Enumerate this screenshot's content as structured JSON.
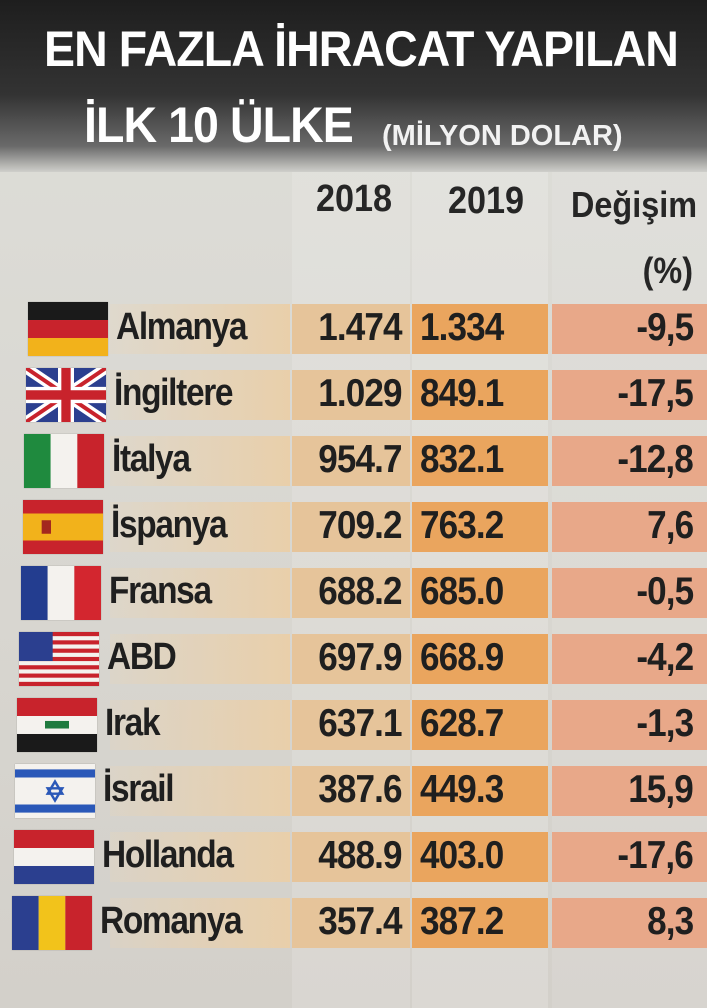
{
  "title": {
    "line1": "EN FAZLA İHRACAT YAPILAN",
    "line2": "İLK 10 ÜLKE",
    "unit": "(MİLYON DOLAR)"
  },
  "columns": {
    "year1": "2018",
    "year2": "2019",
    "change": "Değişim",
    "change_unit": "(%)"
  },
  "chart_data": {
    "type": "table",
    "title": "EN FAZLA İHRACAT YAPILAN İLK 10 ÜLKE",
    "subtitle": "(MİLYON DOLAR)",
    "columns": [
      "2018",
      "2019",
      "Değişim (%)"
    ],
    "rows": [
      {
        "country": "Almanya",
        "flag": "germany-flag",
        "v2018": "1.474",
        "v2019": "1.334",
        "change": "-9,5"
      },
      {
        "country": "İngiltere",
        "flag": "uk-flag",
        "v2018": "1.029",
        "v2019": "849.1",
        "change": "-17,5"
      },
      {
        "country": "İtalya",
        "flag": "italy-flag",
        "v2018": "954.7",
        "v2019": "832.1",
        "change": "-12,8"
      },
      {
        "country": "İspanya",
        "flag": "spain-flag",
        "v2018": "709.2",
        "v2019": "763.2",
        "change": "7,6"
      },
      {
        "country": "Fransa",
        "flag": "france-flag",
        "v2018": "688.2",
        "v2019": "685.0",
        "change": "-0,5"
      },
      {
        "country": "ABD",
        "flag": "usa-flag",
        "v2018": "697.9",
        "v2019": "668.9",
        "change": "-4,2"
      },
      {
        "country": "Irak",
        "flag": "iraq-flag",
        "v2018": "637.1",
        "v2019": "628.7",
        "change": "-1,3"
      },
      {
        "country": "İsrail",
        "flag": "israel-flag",
        "v2018": "387.6",
        "v2019": "449.3",
        "change": "15,9"
      },
      {
        "country": "Hollanda",
        "flag": "netherlands-flag",
        "v2018": "488.9",
        "v2019": "403.0",
        "change": "-17,6"
      },
      {
        "country": "Romanya",
        "flag": "romania-flag",
        "v2018": "357.4",
        "v2019": "387.2",
        "change": "8,3"
      }
    ]
  },
  "colors": {
    "title_band": "#2a2a2a",
    "col_2018": "#e6c49a",
    "col_2019": "#eaa55e",
    "col_change": "#e8a889"
  }
}
